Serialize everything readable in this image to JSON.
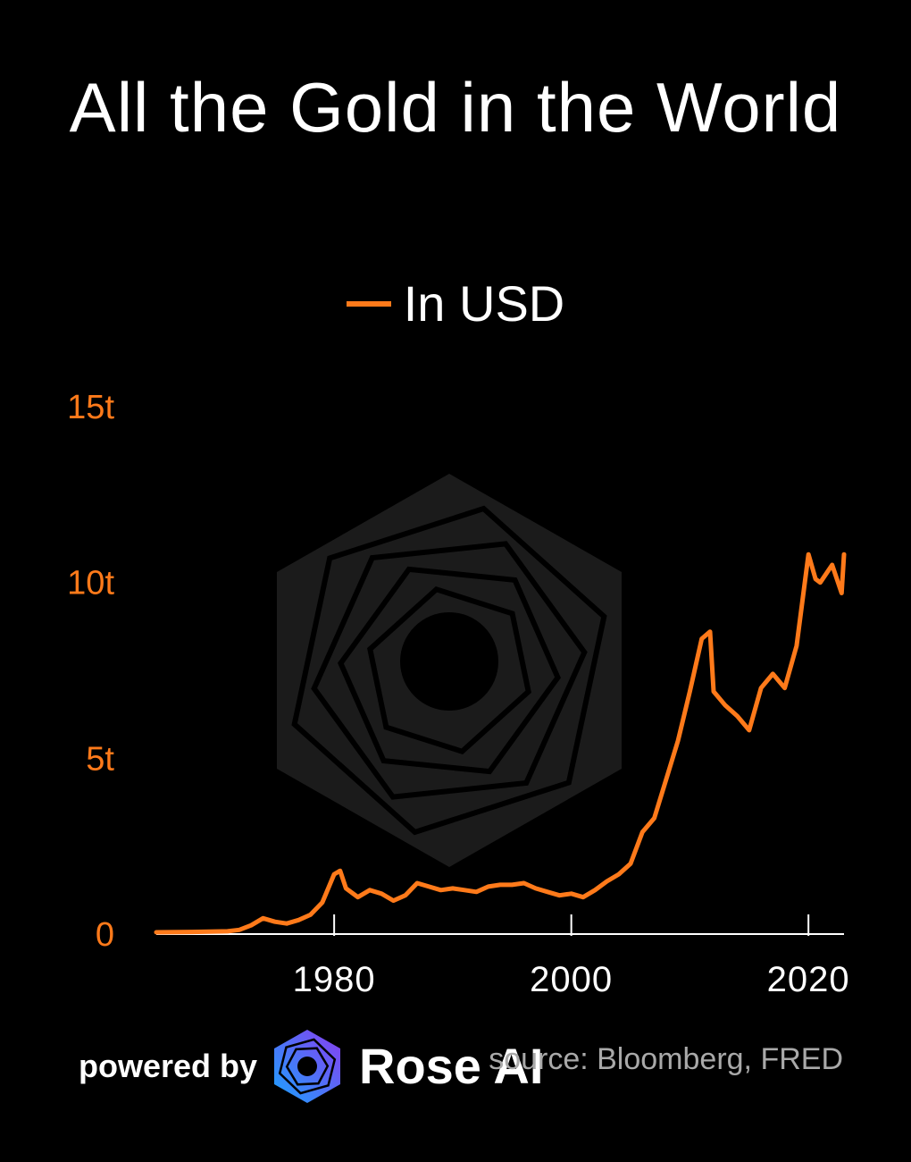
{
  "chart_data": {
    "type": "line",
    "title": "All the Gold in the World",
    "legend": "top-center",
    "series": [
      {
        "name": "In USD",
        "color": "#ff7a1a",
        "x": [
          1965,
          1968,
          1971,
          1972,
          1973,
          1974,
          1975,
          1976,
          1977,
          1978,
          1979,
          1980,
          1980.5,
          1981,
          1982,
          1983,
          1984,
          1985,
          1986,
          1987,
          1988,
          1989,
          1990,
          1991,
          1992,
          1993,
          1994,
          1995,
          1996,
          1997,
          1998,
          1999,
          2000,
          2001,
          2002,
          2003,
          2004,
          2005,
          2006,
          2007,
          2008,
          2009,
          2010,
          2011,
          2011.7,
          2012,
          2013,
          2014,
          2015,
          2016,
          2017,
          2018,
          2019,
          2020,
          2020.6,
          2021,
          2022,
          2022.8,
          2023
        ],
        "y": [
          0.05,
          0.06,
          0.08,
          0.12,
          0.25,
          0.45,
          0.35,
          0.3,
          0.4,
          0.55,
          0.9,
          1.7,
          1.8,
          1.3,
          1.05,
          1.25,
          1.15,
          0.95,
          1.1,
          1.45,
          1.35,
          1.25,
          1.3,
          1.25,
          1.2,
          1.35,
          1.4,
          1.4,
          1.45,
          1.3,
          1.2,
          1.1,
          1.15,
          1.05,
          1.25,
          1.5,
          1.7,
          2.0,
          2.9,
          3.3,
          4.4,
          5.5,
          6.9,
          8.4,
          8.6,
          6.9,
          6.5,
          6.2,
          5.8,
          7.0,
          7.4,
          7.0,
          8.2,
          10.8,
          10.1,
          10.0,
          10.5,
          9.7,
          10.8
        ]
      }
    ],
    "xlabel": "",
    "ylabel": "",
    "xticks": [
      "1980",
      "2000",
      "2020"
    ],
    "yticks": [
      "0",
      "5t",
      "10t",
      "15t"
    ],
    "xlim": [
      1965,
      2023
    ],
    "ylim": [
      0,
      15
    ],
    "grid": false
  },
  "footer": {
    "powered_by": "powered by",
    "brand": "Rose AI",
    "source": "source: Bloomberg, FRED"
  },
  "colors": {
    "background": "#000000",
    "line": "#ff7a1a",
    "axis_tick_labels_y": "#ff7a1a",
    "axis_tick_labels_x": "#ffffff",
    "source_text": "#a9a9a9"
  }
}
